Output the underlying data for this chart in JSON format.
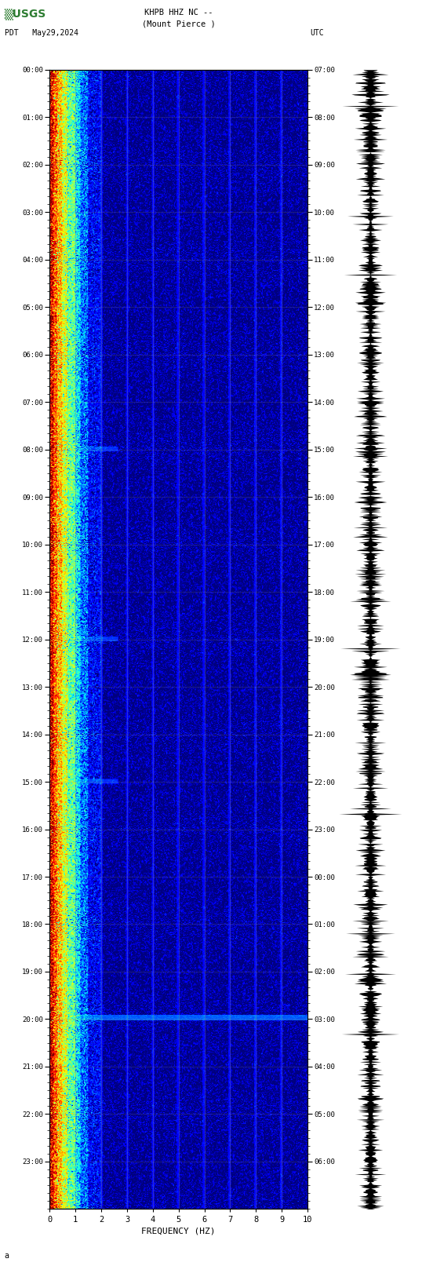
{
  "title_line1": "KHPB HHZ NC --",
  "title_line2": "(Mount Pierce )",
  "left_label": "PDT   May29,2024",
  "right_label": "UTC",
  "xlabel": "FREQUENCY (HZ)",
  "freq_min": 0,
  "freq_max": 10,
  "time_hours": 24,
  "pdt_ticks": [
    "00:00",
    "01:00",
    "02:00",
    "03:00",
    "04:00",
    "05:00",
    "06:00",
    "07:00",
    "08:00",
    "09:00",
    "10:00",
    "11:00",
    "12:00",
    "13:00",
    "14:00",
    "15:00",
    "16:00",
    "17:00",
    "18:00",
    "19:00",
    "20:00",
    "21:00",
    "22:00",
    "23:00"
  ],
  "utc_ticks": [
    "07:00",
    "08:00",
    "09:00",
    "10:00",
    "11:00",
    "12:00",
    "13:00",
    "14:00",
    "15:00",
    "16:00",
    "17:00",
    "18:00",
    "19:00",
    "20:00",
    "21:00",
    "22:00",
    "23:00",
    "00:00",
    "01:00",
    "02:00",
    "03:00",
    "04:00",
    "05:00",
    "06:00"
  ],
  "bg_color": "#ffffff",
  "usgs_green": "#2e7d32",
  "fig_width": 5.52,
  "fig_height": 16.13,
  "dpi": 100,
  "n_time": 1440,
  "n_freq": 300,
  "grid_color": "#808080",
  "grid_alpha": 0.5,
  "grid_lw": 0.5
}
